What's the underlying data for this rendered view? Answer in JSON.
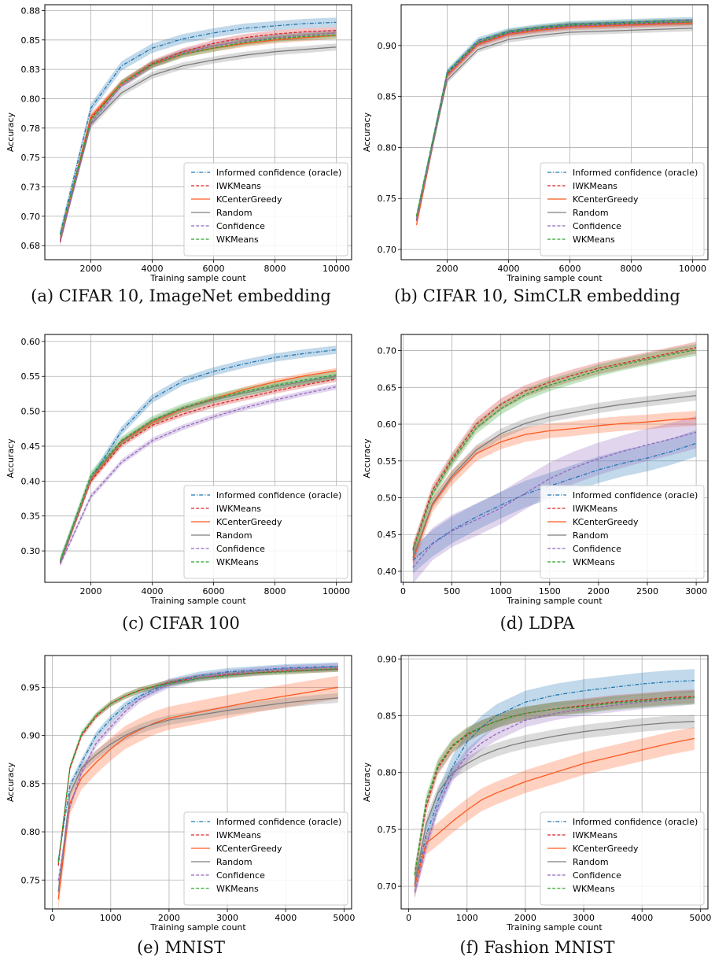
{
  "figure": {
    "colors": {
      "Informed confidence (oracle)": "#1f77b4",
      "IWKMeans": "#d62728",
      "KCenterGreedy": "#ff5a1f",
      "Random": "#7f7f7f",
      "Confidence": "#9467bd",
      "WKMeans": "#2ca02c"
    },
    "legend_order": [
      "Informed confidence (oracle)",
      "IWKMeans",
      "KCenterGreedy",
      "Random",
      "Confidence",
      "WKMeans"
    ],
    "line_styles": {
      "Informed confidence (oracle)": "dashdot",
      "IWKMeans": "dashed",
      "KCenterGreedy": "solid",
      "Random": "solid",
      "Confidence": "dashed",
      "WKMeans": "dashed"
    }
  },
  "chart_data": [
    {
      "type": "line",
      "caption": "(a) CIFAR 10, ImageNet embedding",
      "xlabel": "Training sample count",
      "ylabel": "Accuracy",
      "xlim": [
        500,
        10500
      ],
      "ylim": [
        0.663,
        0.88
      ],
      "xticks": [
        2000,
        4000,
        6000,
        8000,
        10000
      ],
      "xtick_labels": [
        "2000",
        "4000",
        "6000",
        "8000",
        "10000"
      ],
      "yticks": [
        0.675,
        0.7,
        0.725,
        0.75,
        0.775,
        0.8,
        0.825,
        0.85,
        0.875
      ],
      "ytick_labels": [
        "0.68",
        "0.70",
        "0.73",
        "0.75",
        "0.78",
        "0.80",
        "0.83",
        "0.85",
        "0.88"
      ],
      "grid": true,
      "legend_position": "lower right",
      "x": [
        1000,
        2000,
        3000,
        4000,
        5000,
        6000,
        7000,
        8000,
        9000,
        10000
      ],
      "series": [
        {
          "name": "Informed confidence (oracle)",
          "values": [
            0.685,
            0.792,
            0.828,
            0.843,
            0.851,
            0.856,
            0.86,
            0.862,
            0.864,
            0.865
          ],
          "band": 0.004
        },
        {
          "name": "IWKMeans",
          "values": [
            0.678,
            0.783,
            0.813,
            0.83,
            0.84,
            0.847,
            0.852,
            0.855,
            0.857,
            0.858
          ],
          "band": 0.003
        },
        {
          "name": "KCenterGreedy",
          "values": [
            0.681,
            0.785,
            0.813,
            0.829,
            0.838,
            0.843,
            0.847,
            0.85,
            0.852,
            0.854
          ],
          "band": 0.003
        },
        {
          "name": "Random",
          "values": [
            0.68,
            0.778,
            0.805,
            0.82,
            0.828,
            0.833,
            0.837,
            0.84,
            0.842,
            0.844
          ],
          "band": 0.003
        },
        {
          "name": "Confidence",
          "values": [
            0.679,
            0.779,
            0.811,
            0.829,
            0.839,
            0.845,
            0.849,
            0.852,
            0.854,
            0.856
          ],
          "band": 0.003
        },
        {
          "name": "WKMeans",
          "values": [
            0.684,
            0.782,
            0.813,
            0.829,
            0.838,
            0.843,
            0.848,
            0.851,
            0.853,
            0.854
          ],
          "band": 0.003
        }
      ]
    },
    {
      "type": "line",
      "caption": "(b) CIFAR 10, SimCLR embedding",
      "xlabel": "Training sample count",
      "ylabel": "Accuracy",
      "xlim": [
        500,
        10500
      ],
      "ylim": [
        0.69,
        0.94
      ],
      "xticks": [
        2000,
        4000,
        6000,
        8000,
        10000
      ],
      "xtick_labels": [
        "2000",
        "4000",
        "6000",
        "8000",
        "10000"
      ],
      "yticks": [
        0.7,
        0.75,
        0.8,
        0.85,
        0.9
      ],
      "ytick_labels": [
        "0.70",
        "0.75",
        "0.80",
        "0.85",
        "0.90"
      ],
      "grid": true,
      "legend_position": "lower right",
      "x": [
        1000,
        2000,
        3000,
        4000,
        5000,
        6000,
        7000,
        8000,
        9000,
        10000
      ],
      "series": [
        {
          "name": "Informed confidence (oracle)",
          "values": [
            0.732,
            0.874,
            0.905,
            0.914,
            0.918,
            0.921,
            0.922,
            0.923,
            0.924,
            0.925
          ],
          "band": 0.003
        },
        {
          "name": "IWKMeans",
          "values": [
            0.728,
            0.872,
            0.902,
            0.912,
            0.916,
            0.919,
            0.92,
            0.921,
            0.922,
            0.923
          ],
          "band": 0.003
        },
        {
          "name": "KCenterGreedy",
          "values": [
            0.724,
            0.87,
            0.901,
            0.911,
            0.915,
            0.918,
            0.919,
            0.92,
            0.921,
            0.922
          ],
          "band": 0.003
        },
        {
          "name": "Random",
          "values": [
            0.73,
            0.866,
            0.896,
            0.906,
            0.91,
            0.913,
            0.914,
            0.915,
            0.916,
            0.917
          ],
          "band": 0.003
        },
        {
          "name": "Confidence",
          "values": [
            0.729,
            0.871,
            0.902,
            0.912,
            0.916,
            0.919,
            0.92,
            0.921,
            0.922,
            0.923
          ],
          "band": 0.003
        },
        {
          "name": "WKMeans",
          "values": [
            0.733,
            0.873,
            0.903,
            0.913,
            0.917,
            0.92,
            0.921,
            0.922,
            0.923,
            0.923
          ],
          "band": 0.003
        }
      ]
    },
    {
      "type": "line",
      "caption": "(c) CIFAR 100",
      "xlabel": "Training sample count",
      "ylabel": "Accuracy",
      "xlim": [
        500,
        10500
      ],
      "ylim": [
        0.255,
        0.61
      ],
      "xticks": [
        2000,
        4000,
        6000,
        8000,
        10000
      ],
      "xtick_labels": [
        "2000",
        "4000",
        "6000",
        "8000",
        "10000"
      ],
      "yticks": [
        0.3,
        0.35,
        0.4,
        0.45,
        0.5,
        0.55,
        0.6
      ],
      "ytick_labels": [
        "0.30",
        "0.35",
        "0.40",
        "0.45",
        "0.50",
        "0.55",
        "0.60"
      ],
      "grid": true,
      "legend_position": "lower right",
      "x": [
        1000,
        2000,
        3000,
        4000,
        5000,
        6000,
        7000,
        8000,
        9000,
        10000
      ],
      "series": [
        {
          "name": "Informed confidence (oracle)",
          "values": [
            0.285,
            0.403,
            0.472,
            0.518,
            0.543,
            0.557,
            0.568,
            0.577,
            0.583,
            0.588
          ],
          "band": 0.006
        },
        {
          "name": "IWKMeans",
          "values": [
            0.283,
            0.4,
            0.452,
            0.48,
            0.496,
            0.509,
            0.519,
            0.529,
            0.538,
            0.546
          ],
          "band": 0.004
        },
        {
          "name": "KCenterGreedy",
          "values": [
            0.284,
            0.402,
            0.456,
            0.484,
            0.503,
            0.518,
            0.531,
            0.542,
            0.551,
            0.558
          ],
          "band": 0.004
        },
        {
          "name": "Random",
          "values": [
            0.284,
            0.404,
            0.457,
            0.486,
            0.504,
            0.516,
            0.526,
            0.535,
            0.543,
            0.55
          ],
          "band": 0.004
        },
        {
          "name": "Confidence",
          "values": [
            0.281,
            0.378,
            0.427,
            0.458,
            0.477,
            0.492,
            0.505,
            0.516,
            0.526,
            0.535
          ],
          "band": 0.004
        },
        {
          "name": "WKMeans",
          "values": [
            0.286,
            0.408,
            0.458,
            0.487,
            0.505,
            0.518,
            0.528,
            0.537,
            0.545,
            0.552
          ],
          "band": 0.006
        }
      ]
    },
    {
      "type": "line",
      "caption": "(d) LDPA",
      "xlabel": "Training sample count",
      "ylabel": "Accuracy",
      "xlim": [
        -20,
        3120
      ],
      "ylim": [
        0.385,
        0.722
      ],
      "xticks": [
        0,
        500,
        1000,
        1500,
        2000,
        2500,
        3000
      ],
      "xtick_labels": [
        "0",
        "500",
        "1000",
        "1500",
        "2000",
        "2500",
        "3000"
      ],
      "yticks": [
        0.4,
        0.45,
        0.5,
        0.55,
        0.6,
        0.65,
        0.7
      ],
      "ytick_labels": [
        "0.40",
        "0.45",
        "0.50",
        "0.55",
        "0.60",
        "0.65",
        "0.70"
      ],
      "grid": true,
      "legend_position": "lower right",
      "x": [
        100,
        300,
        500,
        750,
        1000,
        1250,
        1500,
        1750,
        2000,
        2250,
        2500,
        2750,
        3000
      ],
      "series": [
        {
          "name": "Informed confidence (oracle)",
          "values": [
            0.415,
            0.438,
            0.456,
            0.474,
            0.49,
            0.505,
            0.516,
            0.527,
            0.538,
            0.547,
            0.554,
            0.563,
            0.574
          ],
          "band": 0.018
        },
        {
          "name": "IWKMeans",
          "values": [
            0.43,
            0.51,
            0.553,
            0.6,
            0.627,
            0.645,
            0.657,
            0.667,
            0.676,
            0.683,
            0.69,
            0.697,
            0.704
          ],
          "band": 0.008
        },
        {
          "name": "KCenterGreedy",
          "values": [
            0.415,
            0.49,
            0.527,
            0.56,
            0.576,
            0.586,
            0.591,
            0.594,
            0.598,
            0.601,
            0.603,
            0.606,
            0.608
          ],
          "band": 0.01
        },
        {
          "name": "Random",
          "values": [
            0.418,
            0.492,
            0.53,
            0.565,
            0.587,
            0.601,
            0.61,
            0.616,
            0.622,
            0.627,
            0.631,
            0.635,
            0.639
          ],
          "band": 0.007
        },
        {
          "name": "Confidence",
          "values": [
            0.405,
            0.437,
            0.455,
            0.47,
            0.486,
            0.506,
            0.526,
            0.541,
            0.553,
            0.563,
            0.572,
            0.58,
            0.589
          ],
          "band": 0.022
        },
        {
          "name": "WKMeans",
          "values": [
            0.428,
            0.505,
            0.55,
            0.595,
            0.621,
            0.64,
            0.653,
            0.663,
            0.673,
            0.681,
            0.688,
            0.695,
            0.701
          ],
          "band": 0.008
        }
      ]
    },
    {
      "type": "line",
      "caption": "(e) MNIST",
      "xlabel": "Training sample count",
      "ylabel": "Accuracy",
      "xlim": [
        -130,
        5130
      ],
      "ylim": [
        0.72,
        0.983
      ],
      "xticks": [
        0,
        1000,
        2000,
        3000,
        4000,
        5000
      ],
      "xtick_labels": [
        "0",
        "1000",
        "2000",
        "3000",
        "4000",
        "5000"
      ],
      "yticks": [
        0.75,
        0.8,
        0.85,
        0.9,
        0.95
      ],
      "ytick_labels": [
        "0.75",
        "0.80",
        "0.85",
        "0.90",
        "0.95"
      ],
      "grid": true,
      "legend_position": "lower right",
      "x": [
        100,
        300,
        500,
        750,
        1000,
        1250,
        1500,
        1750,
        2000,
        2500,
        3000,
        3500,
        4000,
        4500,
        4900
      ],
      "series": [
        {
          "name": "Informed confidence (oracle)",
          "values": [
            0.77,
            0.848,
            0.872,
            0.9,
            0.917,
            0.931,
            0.941,
            0.948,
            0.955,
            0.962,
            0.966,
            0.968,
            0.97,
            0.971,
            0.972
          ],
          "band": 0.004
        },
        {
          "name": "IWKMeans",
          "values": [
            0.765,
            0.866,
            0.9,
            0.92,
            0.933,
            0.941,
            0.947,
            0.951,
            0.955,
            0.96,
            0.963,
            0.965,
            0.967,
            0.968,
            0.969
          ],
          "band": 0.003
        },
        {
          "name": "KCenterGreedy",
          "values": [
            0.73,
            0.83,
            0.856,
            0.872,
            0.886,
            0.898,
            0.906,
            0.913,
            0.918,
            0.924,
            0.93,
            0.936,
            0.941,
            0.946,
            0.95
          ],
          "band": 0.012
        },
        {
          "name": "Random",
          "values": [
            0.738,
            0.84,
            0.866,
            0.88,
            0.891,
            0.9,
            0.907,
            0.912,
            0.916,
            0.921,
            0.926,
            0.93,
            0.934,
            0.937,
            0.939
          ],
          "band": 0.005
        },
        {
          "name": "Confidence",
          "values": [
            0.749,
            0.826,
            0.862,
            0.892,
            0.909,
            0.925,
            0.938,
            0.946,
            0.953,
            0.96,
            0.964,
            0.967,
            0.969,
            0.97,
            0.971
          ],
          "band": 0.004
        },
        {
          "name": "WKMeans",
          "values": [
            0.768,
            0.867,
            0.902,
            0.921,
            0.933,
            0.941,
            0.947,
            0.951,
            0.954,
            0.959,
            0.962,
            0.965,
            0.966,
            0.968,
            0.969
          ],
          "band": 0.003
        }
      ]
    },
    {
      "type": "line",
      "caption": "(f) Fashion MNIST",
      "xlabel": "Training sample count",
      "ylabel": "Accuracy",
      "xlim": [
        -130,
        5130
      ],
      "ylim": [
        0.68,
        0.903
      ],
      "xticks": [
        0,
        1000,
        2000,
        3000,
        4000,
        5000
      ],
      "xtick_labels": [
        "0",
        "1000",
        "2000",
        "3000",
        "4000",
        "5000"
      ],
      "yticks": [
        0.7,
        0.75,
        0.8,
        0.85,
        0.9
      ],
      "ytick_labels": [
        "0.70",
        "0.75",
        "0.80",
        "0.85",
        "0.90"
      ],
      "grid": true,
      "legend_position": "lower right",
      "x": [
        100,
        300,
        500,
        750,
        1000,
        1250,
        1500,
        1750,
        2000,
        2500,
        3000,
        3500,
        4000,
        4500,
        4900
      ],
      "series": [
        {
          "name": "Informed confidence (oracle)",
          "values": [
            0.7,
            0.745,
            0.775,
            0.805,
            0.827,
            0.84,
            0.85,
            0.856,
            0.862,
            0.868,
            0.872,
            0.875,
            0.878,
            0.88,
            0.881
          ],
          "band": 0.01
        },
        {
          "name": "IWKMeans",
          "values": [
            0.71,
            0.77,
            0.804,
            0.823,
            0.833,
            0.84,
            0.845,
            0.849,
            0.852,
            0.856,
            0.859,
            0.862,
            0.864,
            0.866,
            0.867
          ],
          "band": 0.006
        },
        {
          "name": "KCenterGreedy",
          "values": [
            0.7,
            0.738,
            0.746,
            0.757,
            0.767,
            0.776,
            0.782,
            0.787,
            0.792,
            0.8,
            0.808,
            0.814,
            0.82,
            0.826,
            0.83
          ],
          "band": 0.01
        },
        {
          "name": "Random",
          "values": [
            0.702,
            0.755,
            0.782,
            0.8,
            0.808,
            0.815,
            0.82,
            0.824,
            0.827,
            0.832,
            0.836,
            0.839,
            0.842,
            0.844,
            0.845
          ],
          "band": 0.006
        },
        {
          "name": "Confidence",
          "values": [
            0.695,
            0.735,
            0.77,
            0.798,
            0.815,
            0.826,
            0.834,
            0.84,
            0.846,
            0.852,
            0.856,
            0.859,
            0.862,
            0.864,
            0.866
          ],
          "band": 0.006
        },
        {
          "name": "WKMeans",
          "values": [
            0.71,
            0.775,
            0.806,
            0.824,
            0.834,
            0.84,
            0.845,
            0.849,
            0.852,
            0.856,
            0.858,
            0.861,
            0.863,
            0.865,
            0.866
          ],
          "band": 0.006
        }
      ]
    }
  ]
}
